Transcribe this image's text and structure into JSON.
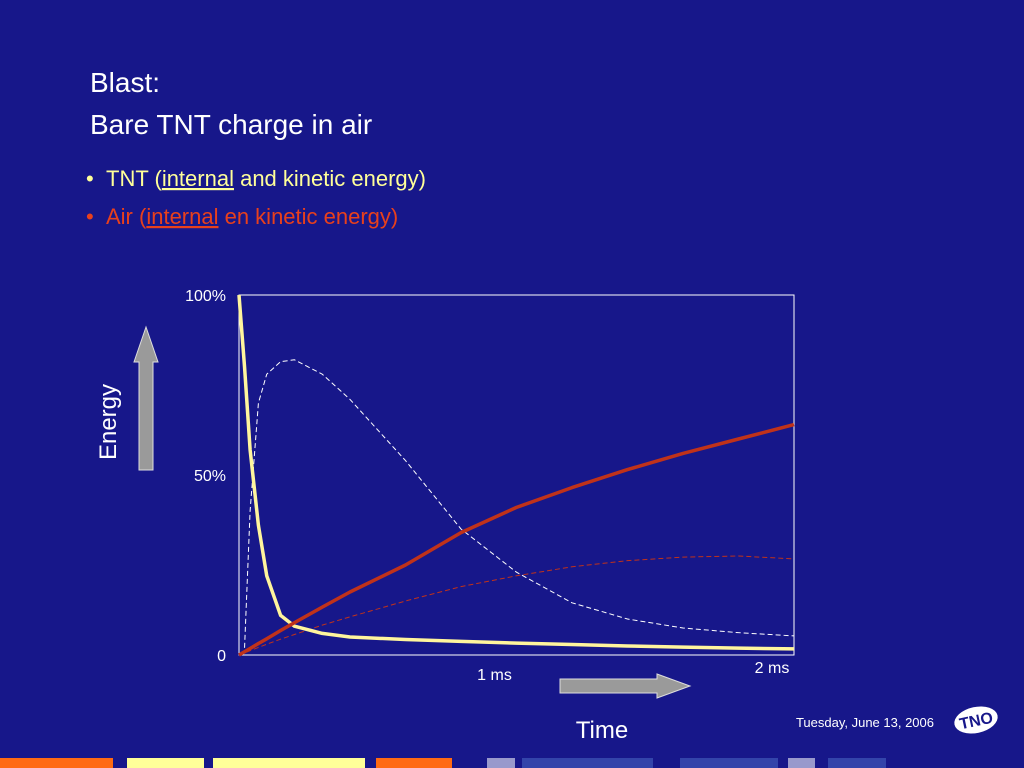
{
  "slide": {
    "title": [
      "Blast:",
      "Bare TNT charge in air"
    ],
    "bullets": [
      {
        "parts": [
          "TNT (",
          "internal",
          " and kinetic energy)"
        ],
        "color": "#ffff99"
      },
      {
        "parts": [
          "Air (",
          "internal",
          " en kinetic energy)"
        ],
        "color": "#e8401c"
      }
    ],
    "date": "Tuesday, June 13, 2006",
    "logo": "TNO"
  },
  "chart_data": {
    "type": "line",
    "ylabel": "Energy",
    "xlabel": "Time",
    "xlim": [
      0,
      2
    ],
    "ylim": [
      0,
      100
    ],
    "xticks": [
      {
        "value": 1,
        "label": "1 ms"
      },
      {
        "value": 2,
        "label": "2 ms"
      }
    ],
    "yticks": [
      0,
      {
        "value": 50,
        "label": "50%"
      },
      {
        "value": 100,
        "label": "100%"
      }
    ],
    "grid": false,
    "x": [
      0,
      0.02,
      0.04,
      0.07,
      0.1,
      0.15,
      0.2,
      0.3,
      0.4,
      0.6,
      0.8,
      1.0,
      1.2,
      1.4,
      1.6,
      1.8,
      2.0
    ],
    "series": [
      {
        "color": "#fff59d",
        "dash": false,
        "values": [
          100,
          80,
          57,
          36,
          22,
          11,
          8,
          6,
          5,
          4.3,
          3.8,
          3.3,
          2.9,
          2.5,
          2.2,
          1.9,
          1.7
        ]
      },
      {
        "color": "#c0321a",
        "dash": false,
        "values": [
          0,
          0.9,
          1.8,
          3.2,
          4.5,
          6.8,
          9,
          13.3,
          17.5,
          25,
          34,
          41,
          46.5,
          51.5,
          56,
          60,
          64
        ]
      },
      {
        "color": "#ffffff",
        "dash": true,
        "values": [
          null,
          2,
          40,
          70,
          78,
          81.5,
          82,
          78,
          71,
          54,
          35,
          23,
          14.5,
          10,
          7.5,
          6.2,
          5.3
        ]
      },
      {
        "color": "#c0321a",
        "dash": true,
        "values": [
          0,
          0.6,
          1.2,
          2.1,
          3,
          4.4,
          5.7,
          8.3,
          10.6,
          15,
          19,
          22,
          24.5,
          26.2,
          27.2,
          27.5,
          26.7
        ]
      }
    ]
  }
}
